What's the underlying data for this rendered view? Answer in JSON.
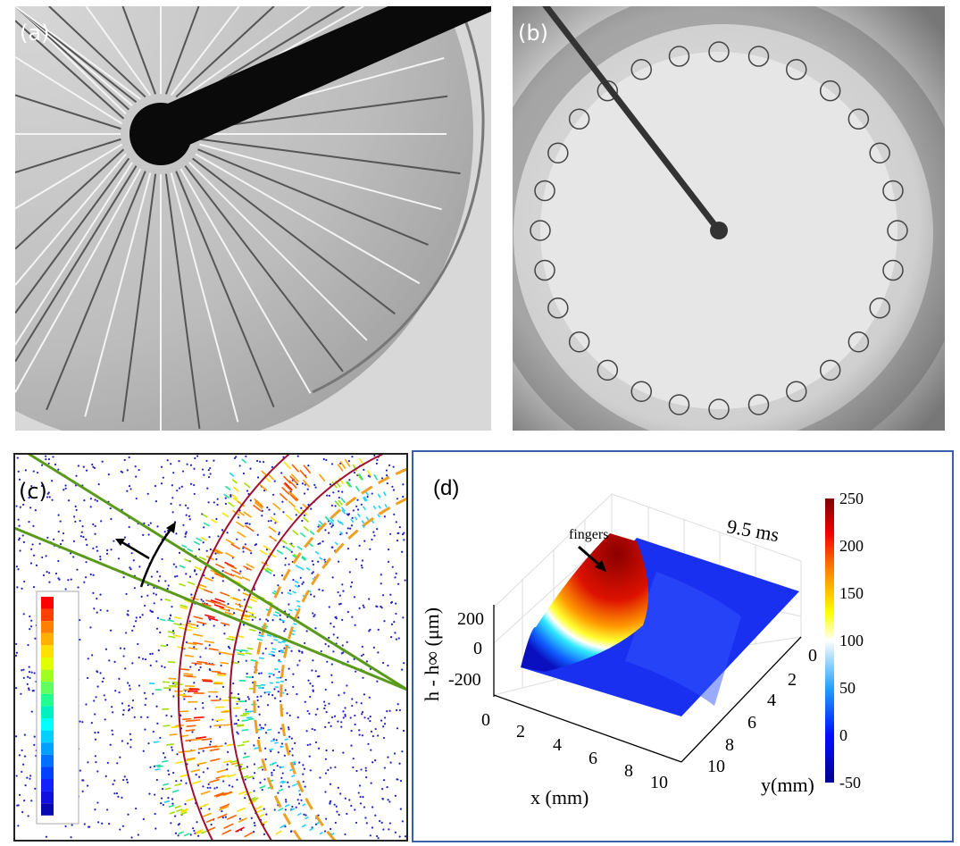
{
  "panels": {
    "a": {
      "label": "(a)"
    },
    "b": {
      "label": "(b)"
    },
    "c": {
      "label": "(c)"
    },
    "d": {
      "label": "(d)"
    }
  },
  "colors": {
    "green_lines": "#5a9a1a",
    "red_arcs": "#a01030",
    "orange_dashed": "#f0a020",
    "tracer_dots": "#2020c0",
    "frame_d": "#3a5ea8"
  },
  "chart_data": {
    "type": "surface",
    "annotation": "fingers",
    "time_label": "9.5 ms",
    "xlabel": "x (mm)",
    "ylabel": "y(mm)",
    "zlabel": "h - h∞ (μm)",
    "x_ticks": [
      "0",
      "2",
      "4",
      "6",
      "8",
      "10"
    ],
    "y_ticks": [
      "0",
      "2",
      "4",
      "6",
      "8",
      "10"
    ],
    "z_ticks": [
      "200",
      "0",
      "-200"
    ],
    "xlim": [
      0,
      10
    ],
    "ylim": [
      0,
      10
    ],
    "colorbar": {
      "ticks": [
        "250",
        "200",
        "150",
        "100",
        "50",
        "0",
        "-50"
      ],
      "range": [
        -50,
        250
      ],
      "colormap": "jet"
    }
  }
}
